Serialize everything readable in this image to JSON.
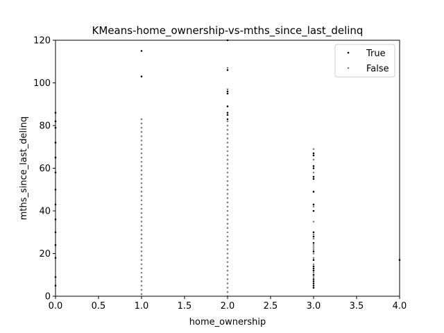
{
  "chart_data": {
    "type": "scatter",
    "title": "KMeans-home_ownership-vs-mths_since_last_delinq",
    "xlabel": "home_ownership",
    "ylabel": "mths_since_last_delinq",
    "xlim": [
      0.0,
      4.0
    ],
    "ylim": [
      0,
      120
    ],
    "xticks": [
      "0.0",
      "0.5",
      "1.0",
      "1.5",
      "2.0",
      "2.5",
      "3.0",
      "3.5",
      "4.0"
    ],
    "yticks": [
      "0",
      "20",
      "40",
      "60",
      "80",
      "100",
      "120"
    ],
    "grid": false,
    "legend_position": "top-right",
    "series": [
      {
        "name": "True",
        "color": "#000000",
        "points": [
          {
            "x": 0,
            "y": 86
          },
          {
            "x": 0,
            "y": 82
          },
          {
            "x": 0,
            "y": 79
          },
          {
            "x": 0,
            "y": 72
          },
          {
            "x": 0,
            "y": 65
          },
          {
            "x": 0,
            "y": 58
          },
          {
            "x": 0,
            "y": 50
          },
          {
            "x": 0,
            "y": 43
          },
          {
            "x": 0,
            "y": 36
          },
          {
            "x": 0,
            "y": 30
          },
          {
            "x": 0,
            "y": 24
          },
          {
            "x": 0,
            "y": 18
          },
          {
            "x": 0,
            "y": 9
          },
          {
            "x": 0,
            "y": 5
          },
          {
            "x": 1,
            "y": 115
          },
          {
            "x": 1,
            "y": 103
          },
          {
            "x": 2,
            "y": 120
          },
          {
            "x": 2,
            "y": 106
          },
          {
            "x": 2,
            "y": 96
          },
          {
            "x": 2,
            "y": 95
          },
          {
            "x": 2,
            "y": 89
          },
          {
            "x": 2,
            "y": 86
          },
          {
            "x": 2,
            "y": 85
          },
          {
            "x": 2,
            "y": 83
          },
          {
            "x": 3,
            "y": 67
          },
          {
            "x": 3,
            "y": 66
          },
          {
            "x": 3,
            "y": 61
          },
          {
            "x": 3,
            "y": 60
          },
          {
            "x": 3,
            "y": 56
          },
          {
            "x": 3,
            "y": 55
          },
          {
            "x": 3,
            "y": 49
          },
          {
            "x": 3,
            "y": 43
          },
          {
            "x": 3,
            "y": 40
          },
          {
            "x": 3,
            "y": 30
          },
          {
            "x": 3,
            "y": 28
          },
          {
            "x": 3,
            "y": 25
          },
          {
            "x": 3,
            "y": 21
          },
          {
            "x": 3,
            "y": 17
          },
          {
            "x": 3,
            "y": 14
          },
          {
            "x": 3,
            "y": 13
          },
          {
            "x": 3,
            "y": 12
          },
          {
            "x": 3,
            "y": 10
          },
          {
            "x": 3,
            "y": 8
          },
          {
            "x": 3,
            "y": 7
          },
          {
            "x": 3,
            "y": 6
          },
          {
            "x": 3,
            "y": 5
          },
          {
            "x": 3,
            "y": 4
          },
          {
            "x": 4,
            "y": 17
          }
        ]
      },
      {
        "name": "False",
        "color": "#808080",
        "points": [
          {
            "x": 1,
            "y": 83
          },
          {
            "x": 1,
            "y": 81
          },
          {
            "x": 1,
            "y": 79
          },
          {
            "x": 1,
            "y": 77
          },
          {
            "x": 1,
            "y": 75
          },
          {
            "x": 1,
            "y": 73
          },
          {
            "x": 1,
            "y": 71
          },
          {
            "x": 1,
            "y": 69
          },
          {
            "x": 1,
            "y": 67
          },
          {
            "x": 1,
            "y": 65
          },
          {
            "x": 1,
            "y": 63
          },
          {
            "x": 1,
            "y": 61
          },
          {
            "x": 1,
            "y": 59
          },
          {
            "x": 1,
            "y": 57
          },
          {
            "x": 1,
            "y": 55
          },
          {
            "x": 1,
            "y": 53
          },
          {
            "x": 1,
            "y": 51
          },
          {
            "x": 1,
            "y": 49
          },
          {
            "x": 1,
            "y": 47
          },
          {
            "x": 1,
            "y": 45
          },
          {
            "x": 1,
            "y": 43
          },
          {
            "x": 1,
            "y": 41
          },
          {
            "x": 1,
            "y": 39
          },
          {
            "x": 1,
            "y": 37
          },
          {
            "x": 1,
            "y": 35
          },
          {
            "x": 1,
            "y": 33
          },
          {
            "x": 1,
            "y": 31
          },
          {
            "x": 1,
            "y": 29
          },
          {
            "x": 1,
            "y": 27
          },
          {
            "x": 1,
            "y": 25
          },
          {
            "x": 1,
            "y": 23
          },
          {
            "x": 1,
            "y": 21
          },
          {
            "x": 1,
            "y": 19
          },
          {
            "x": 1,
            "y": 17
          },
          {
            "x": 1,
            "y": 15
          },
          {
            "x": 1,
            "y": 13
          },
          {
            "x": 1,
            "y": 11
          },
          {
            "x": 1,
            "y": 9
          },
          {
            "x": 1,
            "y": 7
          },
          {
            "x": 1,
            "y": 5
          },
          {
            "x": 1,
            "y": 3
          },
          {
            "x": 1,
            "y": 1
          },
          {
            "x": 2,
            "y": 107
          },
          {
            "x": 2,
            "y": 97
          },
          {
            "x": 2,
            "y": 82
          },
          {
            "x": 2,
            "y": 80
          },
          {
            "x": 2,
            "y": 78
          },
          {
            "x": 2,
            "y": 76
          },
          {
            "x": 2,
            "y": 74
          },
          {
            "x": 2,
            "y": 72
          },
          {
            "x": 2,
            "y": 70
          },
          {
            "x": 2,
            "y": 68
          },
          {
            "x": 2,
            "y": 66
          },
          {
            "x": 2,
            "y": 64
          },
          {
            "x": 2,
            "y": 62
          },
          {
            "x": 2,
            "y": 60
          },
          {
            "x": 2,
            "y": 58
          },
          {
            "x": 2,
            "y": 56
          },
          {
            "x": 2,
            "y": 54
          },
          {
            "x": 2,
            "y": 52
          },
          {
            "x": 2,
            "y": 50
          },
          {
            "x": 2,
            "y": 48
          },
          {
            "x": 2,
            "y": 46
          },
          {
            "x": 2,
            "y": 44
          },
          {
            "x": 2,
            "y": 42
          },
          {
            "x": 2,
            "y": 40
          },
          {
            "x": 2,
            "y": 38
          },
          {
            "x": 2,
            "y": 36
          },
          {
            "x": 2,
            "y": 34
          },
          {
            "x": 2,
            "y": 32
          },
          {
            "x": 2,
            "y": 30
          },
          {
            "x": 2,
            "y": 28
          },
          {
            "x": 2,
            "y": 26
          },
          {
            "x": 2,
            "y": 24
          },
          {
            "x": 2,
            "y": 22
          },
          {
            "x": 2,
            "y": 20
          },
          {
            "x": 2,
            "y": 18
          },
          {
            "x": 2,
            "y": 16
          },
          {
            "x": 2,
            "y": 14
          },
          {
            "x": 2,
            "y": 12
          },
          {
            "x": 2,
            "y": 10
          },
          {
            "x": 2,
            "y": 8
          },
          {
            "x": 2,
            "y": 6
          },
          {
            "x": 2,
            "y": 4
          },
          {
            "x": 2,
            "y": 2
          },
          {
            "x": 2,
            "y": 0
          },
          {
            "x": 3,
            "y": 69
          },
          {
            "x": 3,
            "y": 64
          },
          {
            "x": 3,
            "y": 58
          },
          {
            "x": 3,
            "y": 42
          },
          {
            "x": 3,
            "y": 35
          },
          {
            "x": 3,
            "y": 29
          },
          {
            "x": 3,
            "y": 27
          },
          {
            "x": 3,
            "y": 24
          },
          {
            "x": 3,
            "y": 23
          },
          {
            "x": 3,
            "y": 22
          },
          {
            "x": 3,
            "y": 20
          },
          {
            "x": 3,
            "y": 18
          },
          {
            "x": 3,
            "y": 15
          },
          {
            "x": 3,
            "y": 11
          },
          {
            "x": 3,
            "y": 9
          }
        ]
      }
    ]
  }
}
